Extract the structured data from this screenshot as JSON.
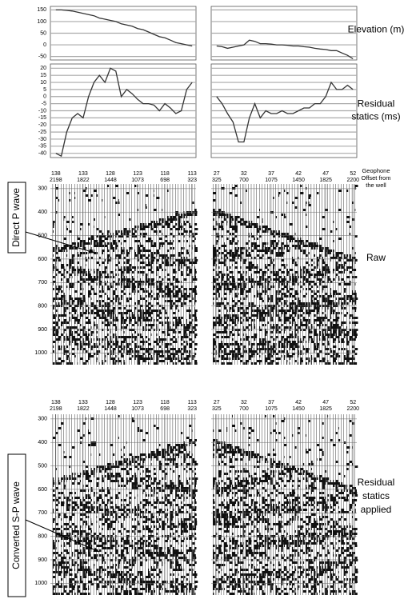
{
  "chart_data": [
    {
      "type": "line",
      "ylabel": "Elevation (m)",
      "ylim": [
        -65,
        165
      ],
      "yticks": [
        150,
        100,
        50,
        0,
        -50
      ],
      "grid": true,
      "color": "#333333",
      "series": [
        {
          "x": [
            138,
            137,
            136,
            135,
            134,
            133,
            132,
            131,
            130,
            129,
            128,
            127,
            126,
            125,
            124,
            123,
            122,
            121,
            120,
            119,
            118,
            117,
            116,
            115,
            114,
            113
          ],
          "values": [
            150,
            150,
            148,
            145,
            140,
            135,
            130,
            125,
            115,
            110,
            105,
            100,
            90,
            85,
            80,
            70,
            65,
            55,
            45,
            35,
            30,
            20,
            10,
            5,
            0,
            -5
          ],
          "xlim": [
            139,
            112.3
          ]
        },
        {
          "x": [
            27,
            28,
            29,
            30,
            31,
            32,
            33,
            34,
            35,
            36,
            37,
            38,
            39,
            40,
            41,
            42,
            43,
            44,
            45,
            46,
            47,
            48,
            49,
            50,
            51,
            52
          ],
          "values": [
            -5,
            -8,
            -15,
            -10,
            -5,
            0,
            20,
            15,
            5,
            5,
            3,
            0,
            0,
            -2,
            -5,
            -5,
            -8,
            -10,
            -15,
            -18,
            -20,
            -25,
            -25,
            -35,
            -45,
            -60
          ],
          "xlim": [
            26,
            52.7
          ]
        }
      ]
    },
    {
      "type": "line",
      "ylabel_lines": [
        "Residual",
        "statics (ms)"
      ],
      "ylim": [
        -43,
        23
      ],
      "yticks": [
        20,
        15,
        10,
        5,
        0,
        -5,
        -10,
        -15,
        -20,
        -25,
        -30,
        -35,
        -40
      ],
      "grid": true,
      "color": "#333333",
      "series": [
        {
          "x": [
            138,
            137,
            136,
            135,
            134,
            133,
            132,
            131,
            130,
            129,
            128,
            127,
            126,
            125,
            124,
            123,
            122,
            121,
            120,
            119,
            118,
            117,
            116,
            115,
            114,
            113
          ],
          "values": [
            -40,
            -42,
            -25,
            -15,
            -12,
            -15,
            0,
            10,
            15,
            10,
            20,
            18,
            0,
            5,
            2,
            -2,
            -5,
            -5,
            -6,
            -10,
            -5,
            -8,
            -12,
            -10,
            5,
            10
          ],
          "xlim": [
            139,
            112.3
          ]
        },
        {
          "x": [
            27,
            28,
            29,
            30,
            31,
            32,
            33,
            34,
            35,
            36,
            37,
            38,
            39,
            40,
            41,
            42,
            43,
            44,
            45,
            46,
            47,
            48,
            49,
            50,
            51,
            52
          ],
          "values": [
            0,
            -5,
            -12,
            -18,
            -32,
            -32,
            -15,
            -5,
            -15,
            -10,
            -12,
            -12,
            -10,
            -12,
            -12,
            -10,
            -8,
            -8,
            -5,
            -5,
            0,
            10,
            5,
            5,
            8,
            5
          ],
          "xlim": [
            26,
            52.7
          ]
        }
      ]
    },
    {
      "type": "seismic",
      "title": "Raw",
      "annotation": "Direct P wave",
      "header_lines": [
        "Geophone",
        "Offset from",
        "the well"
      ],
      "ylim": [
        280,
        1050
      ],
      "y_inverted": true,
      "yticks": [
        300,
        400,
        500,
        600,
        700,
        800,
        900,
        1000
      ],
      "panels": [
        {
          "stations": [
            138,
            133,
            128,
            123,
            118,
            113
          ],
          "offsets": [
            2198,
            1822,
            1448,
            1073,
            698,
            323
          ],
          "xlim": [
            139,
            112.3
          ]
        },
        {
          "stations": [
            27,
            32,
            37,
            42,
            47,
            52
          ],
          "offsets": [
            325,
            700,
            1075,
            1450,
            1825,
            2200
          ],
          "xlim": [
            26,
            52.7
          ]
        }
      ]
    },
    {
      "type": "seismic",
      "title_lines": [
        "Residual",
        "statics",
        "applied"
      ],
      "annotation": "Converted S-P wave",
      "ylim": [
        280,
        1050
      ],
      "y_inverted": true,
      "yticks": [
        300,
        400,
        500,
        600,
        700,
        800,
        900,
        1000
      ],
      "panels": [
        {
          "stations": [
            138,
            133,
            128,
            123,
            118,
            113
          ],
          "offsets": [
            2198,
            1822,
            1448,
            1073,
            698,
            323
          ],
          "xlim": [
            139,
            112.3
          ]
        },
        {
          "stations": [
            27,
            32,
            37,
            42,
            47,
            52
          ],
          "offsets": [
            325,
            700,
            1075,
            1450,
            1825,
            2200
          ],
          "xlim": [
            26,
            52.7
          ]
        }
      ]
    }
  ]
}
